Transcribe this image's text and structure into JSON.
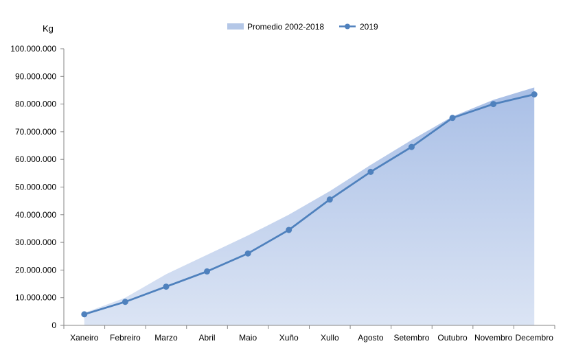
{
  "chart_data": {
    "type": "line",
    "y_unit": "Kg",
    "categories": [
      "Xaneiro",
      "Febreiro",
      "Marzo",
      "Abril",
      "Maio",
      "Xuño",
      "Xullo",
      "Agosto",
      "Setembro",
      "Outubro",
      "Novembro",
      "Decembro"
    ],
    "ylim": [
      0,
      100000000
    ],
    "y_ticks": [
      "0",
      "10.000.000",
      "20.000.000",
      "30.000.000",
      "40.000.000",
      "50.000.000",
      "60.000.000",
      "70.000.000",
      "80.000.000",
      "90.000.000",
      "100.000.000"
    ],
    "grid": false,
    "legend_position": "top",
    "series": [
      {
        "name": "Promedio 2002-2018",
        "type": "area",
        "color": "#b4c7e7",
        "values": [
          4500000,
          10000000,
          18500000,
          25500000,
          32500000,
          40000000,
          48500000,
          58000000,
          67000000,
          75500000,
          81500000,
          86000000
        ]
      },
      {
        "name": "2019",
        "type": "line",
        "color": "#4f81bd",
        "values": [
          4000000,
          8500000,
          14000000,
          19500000,
          26000000,
          34500000,
          45500000,
          55500000,
          64500000,
          75000000,
          80000000,
          83500000
        ]
      }
    ]
  }
}
